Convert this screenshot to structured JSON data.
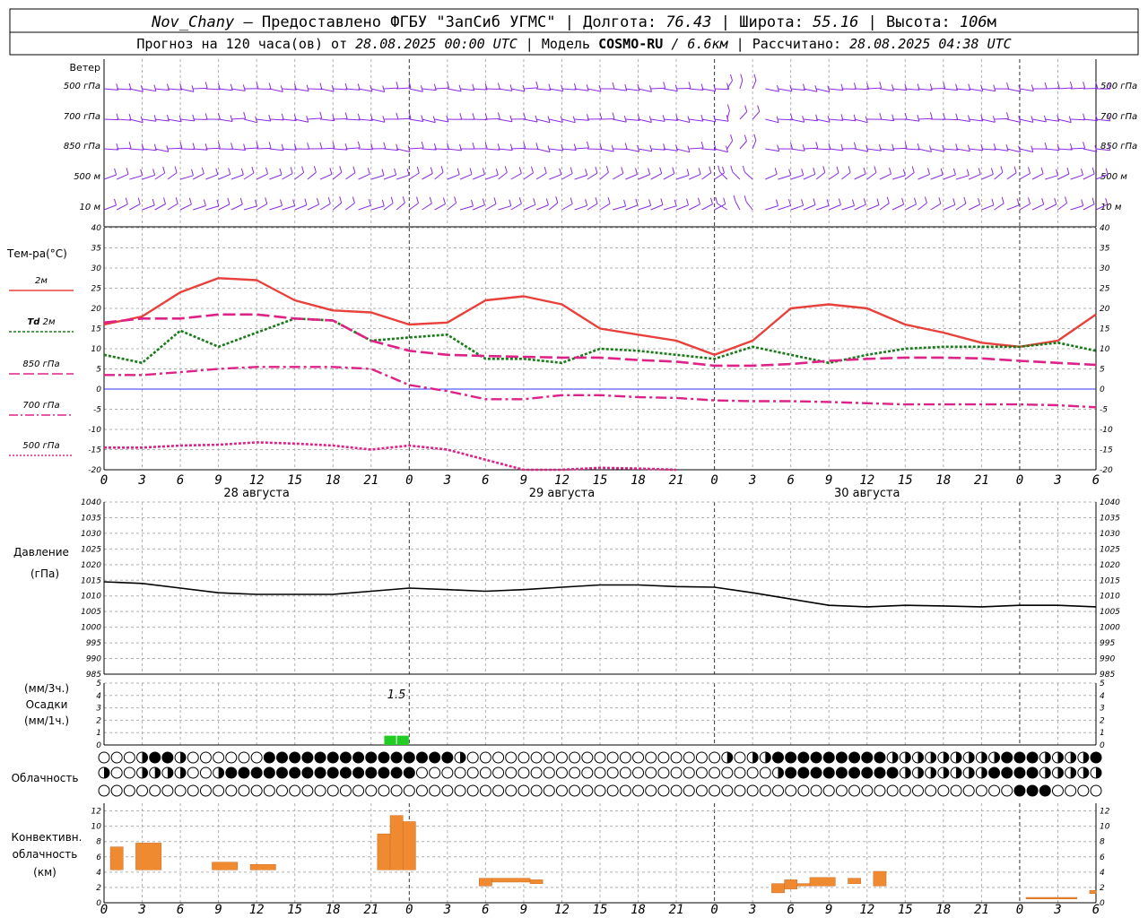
{
  "header": {
    "station": "Nov_Chany",
    "provider": "— Предоставлено ФГБУ \"ЗапСиб УГМС\"",
    "lon_label": "Долгота:",
    "lon_value": "76.43",
    "lat_label": "Широта:",
    "lat_value": "55.16",
    "alt_label": "Высота:",
    "alt_value": "106",
    "alt_unit": "м",
    "forecast_prefix": "Прогноз на 120 часа(ов) от",
    "forecast_time": "28.08.2025 00:00 UTC",
    "model_label": "Модель",
    "model_name": "COSMO-RU",
    "model_res": "/ 6.6км",
    "calc_label": "Рассчитано:",
    "calc_time": "28.08.2025 04:38 UTC"
  },
  "colors": {
    "wind": "#8a2be2",
    "t2m": "#e8403a",
    "td2m": "#1a7a1a",
    "t850": "#dd2288",
    "t700": "#dd2288",
    "t500": "#dd2288",
    "pressure": "#000000",
    "precip": "#22cc22",
    "convective": "#f08a30",
    "grid": "#b0b0b0",
    "zero": "#3030ff"
  },
  "wind_panel": {
    "title": "Ветер",
    "levels": [
      "500 гПа",
      "700 гПа",
      "850 гПа",
      "500 м",
      "10  м"
    ]
  },
  "x_axis": {
    "ticks": [
      "0",
      "3",
      "6",
      "9",
      "12",
      "15",
      "18",
      "21",
      "0",
      "3",
      "6",
      "9",
      "12",
      "15",
      "18",
      "21",
      "0",
      "3",
      "6",
      "9",
      "12",
      "15",
      "18",
      "21",
      "0",
      "3",
      "6"
    ],
    "days": [
      "28 августа",
      "29 августа",
      "30 августа"
    ]
  },
  "chart_data": [
    {
      "type": "line",
      "title": "Тем-ра(°C)",
      "ylim": [
        -20,
        40
      ],
      "yticks": [
        "40",
        "35",
        "30",
        "25",
        "20",
        "15",
        "10",
        "5",
        "0",
        "-5",
        "-10",
        "-15",
        "-20"
      ],
      "x_unit": "hours from 28.08.2025 00:00 UTC",
      "x": [
        0,
        3,
        6,
        9,
        12,
        15,
        18,
        21,
        24,
        27,
        30,
        33,
        36,
        39,
        42,
        45,
        48,
        51,
        54,
        57,
        60,
        63,
        66,
        69,
        72,
        75,
        78
      ],
      "series": [
        {
          "name": "2м",
          "values": [
            16,
            18,
            24,
            27.5,
            27,
            22,
            19.5,
            19,
            16,
            16.5,
            22,
            23,
            21,
            15,
            13.5,
            12,
            8.5,
            12,
            20,
            21,
            20,
            16,
            14,
            11.5,
            10.5,
            12,
            18.5
          ]
        },
        {
          "name": "Td  2м",
          "values": [
            8.5,
            6.5,
            14.5,
            10.5,
            14,
            17.5,
            17,
            12,
            12.8,
            13.5,
            7.5,
            7.5,
            6.5,
            10,
            9.5,
            8.5,
            7.5,
            10.5,
            8.5,
            6.5,
            8.5,
            10,
            10.5,
            10.5,
            10.5,
            11.5,
            9.5
          ]
        },
        {
          "name": "850 гПа",
          "values": [
            16.5,
            17.5,
            17.5,
            18.5,
            18.5,
            17.5,
            17,
            12,
            9.5,
            8.5,
            8.2,
            8,
            7.8,
            7.8,
            7.2,
            6.8,
            5.8,
            5.8,
            6.2,
            7,
            7.5,
            7.8,
            7.8,
            7.6,
            7,
            6.5,
            6
          ]
        },
        {
          "name": "700 гПа",
          "values": [
            3.5,
            3.5,
            4.2,
            5,
            5.5,
            5.5,
            5.5,
            5,
            1,
            -0.5,
            -2.5,
            -2.5,
            -1.5,
            -1.5,
            -2,
            -2.2,
            -2.8,
            -3,
            -3,
            -3.2,
            -3.5,
            -3.8,
            -3.8,
            -3.8,
            -3.8,
            -4,
            -4.5
          ]
        },
        {
          "name": "500 гПа",
          "values": [
            -14.5,
            -14.5,
            -14,
            -13.8,
            -13.2,
            -13.5,
            -14,
            -15,
            -14,
            -15,
            -17.5,
            -20,
            -20,
            -19.5,
            -19.7,
            -20,
            null,
            null,
            null,
            null,
            null,
            null,
            null,
            null,
            null,
            null,
            null
          ]
        }
      ]
    },
    {
      "type": "line",
      "title": "Давление",
      "ylabel": "(гПа)",
      "ylim": [
        985,
        1040
      ],
      "yticks": [
        "1040",
        "1035",
        "1030",
        "1025",
        "1020",
        "1015",
        "1010",
        "1005",
        "1000",
        "995",
        "990",
        "985"
      ],
      "x": [
        0,
        3,
        6,
        9,
        12,
        15,
        18,
        21,
        24,
        27,
        30,
        33,
        36,
        39,
        42,
        45,
        48,
        51,
        54,
        57,
        60,
        63,
        66,
        69,
        72,
        75,
        78
      ],
      "series": [
        {
          "name": "pressure",
          "values": [
            1014.5,
            1014,
            1012.5,
            1011,
            1010.5,
            1010.5,
            1010.5,
            1011.5,
            1012.5,
            1012,
            1011.5,
            1012,
            1012.8,
            1013.5,
            1013.5,
            1013,
            1012.8,
            1011,
            1009,
            1007,
            1006.5,
            1007,
            1006.8,
            1006.5,
            1007,
            1007,
            1006.5
          ]
        }
      ]
    },
    {
      "type": "bar",
      "title": "Осадки",
      "ylabel_top": "(мм/3ч.)",
      "ylabel_bottom": "(мм/1ч.)",
      "ylim": [
        0,
        5
      ],
      "yticks": [
        "5",
        "4",
        "3",
        "2",
        "1",
        "0"
      ],
      "annotation": "1.5",
      "bars": [
        {
          "x_from": 22,
          "x_to": 23,
          "value": 0.75
        },
        {
          "x_from": 23,
          "x_to": 24,
          "value": 0.75
        }
      ]
    },
    {
      "type": "bar",
      "title": "Конвективн.",
      "ylabel": "облачность",
      "unit": "(км)",
      "ylim": [
        0,
        13
      ],
      "yticks": [
        "12",
        "10",
        "8",
        "6",
        "4",
        "2",
        "0"
      ],
      "bars": [
        {
          "x_from": 0.5,
          "x_to": 1.5,
          "bottom": 4.3,
          "top": 7.3
        },
        {
          "x_from": 2.5,
          "x_to": 4.5,
          "bottom": 4.3,
          "top": 7.8
        },
        {
          "x_from": 8.5,
          "x_to": 10.5,
          "bottom": 4.3,
          "top": 5.3
        },
        {
          "x_from": 11.5,
          "x_to": 13.5,
          "bottom": 4.3,
          "top": 5
        },
        {
          "x_from": 21.5,
          "x_to": 22.5,
          "bottom": 4.3,
          "top": 9
        },
        {
          "x_from": 22.5,
          "x_to": 23.5,
          "bottom": 4.3,
          "top": 11.4
        },
        {
          "x_from": 23.5,
          "x_to": 24.5,
          "bottom": 4.3,
          "top": 10.6
        },
        {
          "x_from": 29.5,
          "x_to": 30.5,
          "bottom": 2.2,
          "top": 3.2
        },
        {
          "x_from": 30.5,
          "x_to": 33.5,
          "bottom": 2.7,
          "top": 3.2
        },
        {
          "x_from": 33.5,
          "x_to": 34.5,
          "bottom": 2.5,
          "top": 3
        },
        {
          "x_from": 52.5,
          "x_to": 53.5,
          "bottom": 1.3,
          "top": 2.5
        },
        {
          "x_from": 53.5,
          "x_to": 54.5,
          "bottom": 1.8,
          "top": 3
        },
        {
          "x_from": 54.5,
          "x_to": 55.5,
          "bottom": 2.2,
          "top": 2.5
        },
        {
          "x_from": 55.5,
          "x_to": 57.5,
          "bottom": 2.2,
          "top": 3.3
        },
        {
          "x_from": 58.5,
          "x_to": 59.5,
          "bottom": 2.5,
          "top": 3.2
        },
        {
          "x_from": 60.5,
          "x_to": 61.5,
          "bottom": 2.2,
          "top": 4.1
        },
        {
          "x_from": 72.5,
          "x_to": 76.5,
          "bottom": 0.5,
          "top": 0.7
        },
        {
          "x_from": 77.5,
          "x_to": 78,
          "bottom": 1.2,
          "top": 1.6
        }
      ]
    },
    {
      "type": "table",
      "title": "Облачность",
      "rows": [
        "0,0,0,2,4,4,2,0,0,0,0,0,0,4,4,4,4,4,4,4,4,4,4,4,4,4,4,4,2,0,0,0,0,0,0,0,0,0,0,0,0,0,0,0,0,0,0,0,0,2,0,2,2,4,4,4,4,4,4,4,4,4,2,2,2,2,2,2,2,2,2,4,4,4,2,2,2,2,4",
        "2,0,0,2,2,2,2,0,0,2,4,4,4,4,4,4,4,4,4,4,4,4,4,4,4,0,0,0,0,0,0,0,0,0,0,0,0,0,0,0,0,0,0,0,0,0,0,0,0,0,0,0,0,2,4,4,4,4,4,4,4,4,4,2,2,2,2,2,2,2,4,4,4,4,2,2,2,2,2",
        "0,0,0,0,0,0,0,0,0,0,0,0,0,0,0,0,0,0,0,0,0,0,0,0,0,0,0,0,0,0,0,0,0,0,0,0,0,0,0,0,0,0,0,0,0,0,0,0,0,0,0,0,0,0,0,0,0,0,0,0,0,0,0,0,0,0,0,0,0,0,0,0,4,4,4,0,0,0,0"
      ]
    }
  ],
  "legend": {
    "t2m": "2м",
    "td_bold": "Td",
    "td_rest": "2м",
    "t850": "850 гПа",
    "t700": "700 гПа",
    "t500": "500 гПа"
  }
}
